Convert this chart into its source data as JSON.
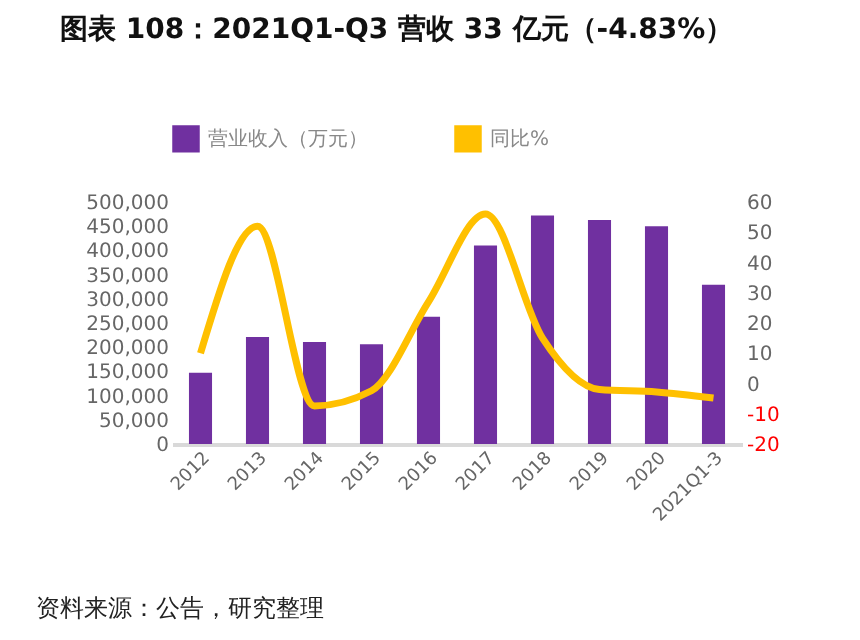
{
  "chart_data": {
    "type": "bar",
    "title": "图表 108：2021Q1-Q3 营收 33 亿元（-4.83%）",
    "categories": [
      "2012",
      "2013",
      "2014",
      "2015",
      "2016",
      "2017",
      "2018",
      "2019",
      "2020",
      "2021Q1-3"
    ],
    "series": [
      {
        "name": "营业收入（万元）",
        "color": "#7030a0",
        "values": [
          147000,
          221000,
          211000,
          206000,
          263000,
          410000,
          472000,
          463000,
          450000,
          329000
        ]
      },
      {
        "name": "同比%",
        "color": "#ffc000",
        "type": "line",
        "axis": "y2",
        "values": [
          10,
          52,
          -7.4,
          -2.4,
          27,
          56,
          15,
          -2,
          -2.8,
          -4.83
        ]
      }
    ],
    "ylim": [
      0,
      500000
    ],
    "yticks": [
      0,
      {
        "value": 50000,
        "label": "50,000"
      },
      {
        "value": 100000,
        "label": "100,000"
      },
      {
        "value": 150000,
        "label": "150,000"
      },
      {
        "value": 200000,
        "label": "200,000"
      },
      {
        "value": 250000,
        "label": "250,000"
      },
      {
        "value": 300000,
        "label": "300,000"
      },
      {
        "value": 350000,
        "label": "350,000"
      },
      {
        "value": 400000,
        "label": "400,000"
      },
      {
        "value": 450000,
        "label": "450,000"
      },
      {
        "value": 500000,
        "label": "500,000"
      }
    ],
    "y2lim": [
      -20,
      60
    ],
    "y2ticks": [
      -20,
      -10,
      0,
      10,
      20,
      30,
      40,
      50,
      60
    ],
    "grid": false,
    "legend": "top",
    "marker": "none",
    "annotations": [
      "资料来源：公告，研究整理"
    ]
  }
}
